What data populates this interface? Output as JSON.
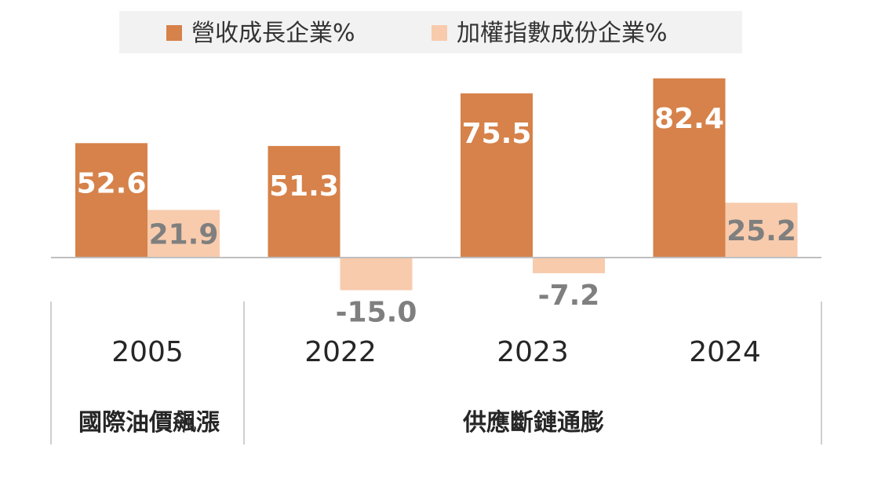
{
  "chart_data": {
    "type": "bar",
    "categories": [
      "2005",
      "2022",
      "2023",
      "2024"
    ],
    "series": [
      {
        "name": "營收成長企業%",
        "color": "#d6824a",
        "values": [
          52.6,
          51.3,
          75.5,
          82.4
        ]
      },
      {
        "name": "加權指數成份企業%",
        "color": "#f8cbad",
        "values": [
          21.9,
          -15.0,
          -7.2,
          25.2
        ]
      }
    ],
    "groups": [
      {
        "label": "國際油價飆漲",
        "categories": [
          "2005"
        ]
      },
      {
        "label": "供應斷鏈通膨",
        "categories": [
          "2022",
          "2023",
          "2024"
        ]
      }
    ],
    "legend_position": "top-center",
    "title": "",
    "xlabel": "",
    "ylabel": ""
  }
}
